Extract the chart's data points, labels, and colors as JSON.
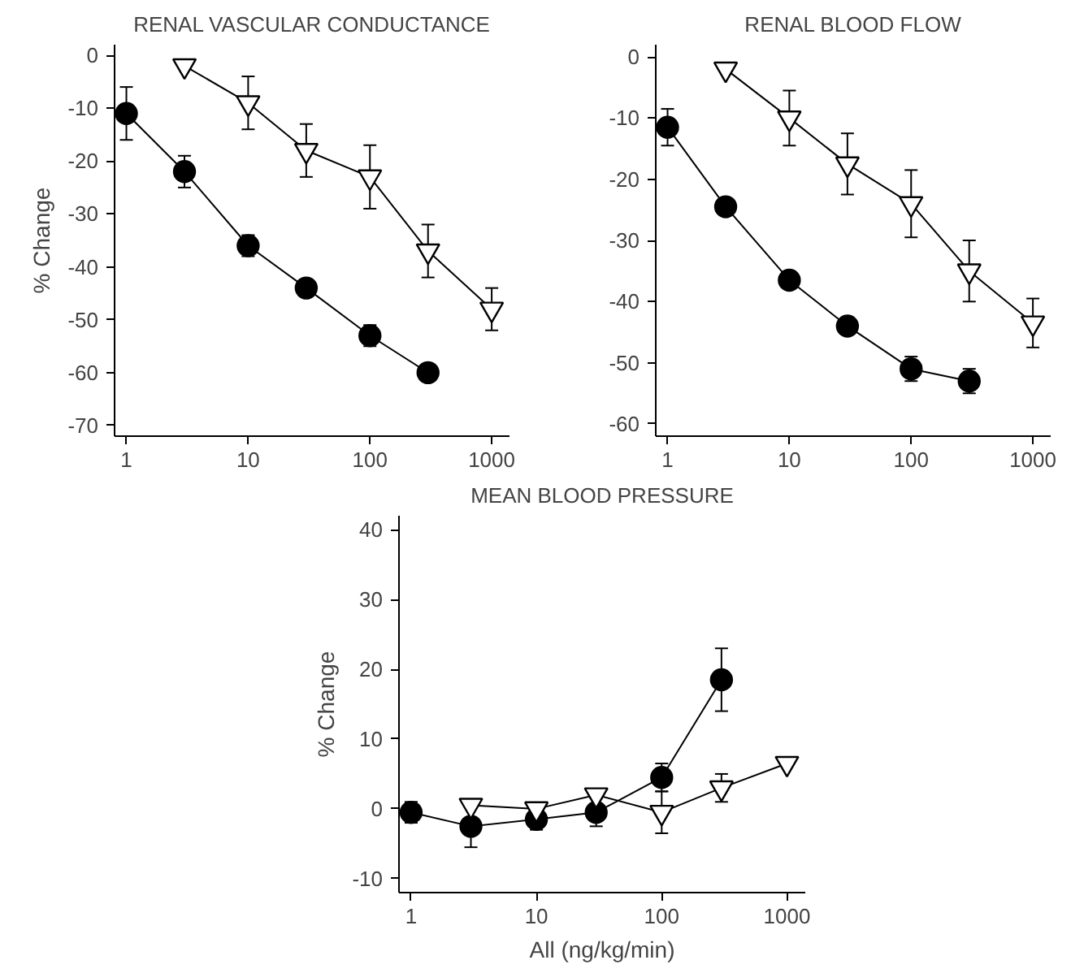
{
  "chart_data": [
    {
      "type": "line",
      "title": "RENAL VASCULAR CONDUCTANCE",
      "ylabel": "% Change",
      "log": "x",
      "xlim": [
        0.8,
        1400
      ],
      "xticks": [
        1,
        10,
        100,
        1000
      ],
      "ylim": [
        -72,
        2
      ],
      "yticks": [
        0,
        -10,
        -20,
        -30,
        -40,
        -50,
        -60,
        -70
      ],
      "grid": false,
      "series": [
        {
          "color": "#000000",
          "marker": "circle",
          "x": [
            1,
            3,
            10,
            30,
            100,
            300
          ],
          "values": [
            -11,
            -22,
            -36,
            -44,
            -53,
            -60
          ],
          "errors": [
            5,
            3,
            2,
            null,
            2,
            null
          ]
        },
        {
          "color": "#000000",
          "marker": "triangle",
          "x": [
            3,
            10,
            30,
            100,
            300,
            1000
          ],
          "values": [
            -2,
            -9,
            -18,
            -23,
            -37,
            -48
          ],
          "errors": [
            null,
            5,
            5,
            6,
            5,
            4
          ]
        }
      ]
    },
    {
      "type": "line",
      "title": "RENAL BLOOD FLOW",
      "log": "x",
      "xlim": [
        0.8,
        1400
      ],
      "xticks": [
        1,
        10,
        100,
        1000
      ],
      "ylim": [
        -62,
        2
      ],
      "yticks": [
        0,
        -10,
        -20,
        -30,
        -40,
        -50,
        -60
      ],
      "grid": false,
      "series": [
        {
          "color": "#000000",
          "marker": "circle",
          "x": [
            1,
            3,
            10,
            30,
            100,
            300
          ],
          "values": [
            -11.5,
            -24.5,
            -36.5,
            -44,
            -51,
            -53
          ],
          "errors": [
            3,
            null,
            null,
            null,
            2,
            2
          ]
        },
        {
          "color": "#000000",
          "marker": "triangle",
          "x": [
            3,
            10,
            30,
            100,
            300,
            1000
          ],
          "values": [
            -2,
            -10,
            -17.5,
            -24,
            -35,
            -43.5
          ],
          "errors": [
            null,
            4.5,
            5,
            5.5,
            5,
            4
          ]
        }
      ]
    },
    {
      "type": "line",
      "title": "MEAN BLOOD PRESSURE",
      "ylabel": "% Change",
      "xlabel": "All (ng/kg/min)",
      "log": "x",
      "xlim": [
        0.8,
        1400
      ],
      "xticks": [
        1,
        10,
        100,
        1000
      ],
      "ylim": [
        -12,
        42
      ],
      "yticks": [
        40,
        30,
        20,
        10,
        0,
        -10
      ],
      "grid": false,
      "series": [
        {
          "color": "#000000",
          "marker": "circle",
          "x": [
            1,
            3,
            10,
            30,
            100,
            300
          ],
          "values": [
            -0.5,
            -2.5,
            -1.5,
            -0.5,
            4.5,
            18.5
          ],
          "errors": [
            1.5,
            3,
            1.5,
            2,
            2,
            4.5
          ]
        },
        {
          "color": "#000000",
          "marker": "triangle",
          "x": [
            3,
            10,
            30,
            100,
            300,
            1000
          ],
          "values": [
            0.5,
            0,
            2,
            -0.5,
            3,
            6.5
          ],
          "errors": [
            null,
            null,
            null,
            3,
            2,
            null
          ]
        }
      ]
    }
  ]
}
